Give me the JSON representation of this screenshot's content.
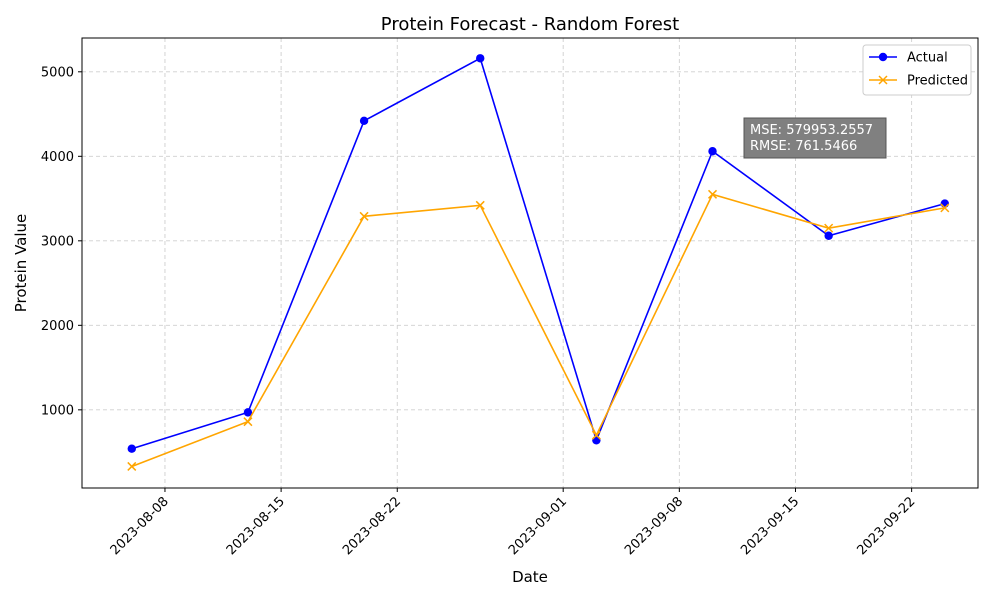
{
  "chart_data": {
    "type": "line",
    "title": "Protein Forecast - Random Forest",
    "xlabel": "Date",
    "ylabel": "Protein Value",
    "x": [
      "2023-08-06",
      "2023-08-13",
      "2023-08-20",
      "2023-08-27",
      "2023-09-03",
      "2023-09-10",
      "2023-09-17",
      "2023-09-24"
    ],
    "xlim": [
      "2023-08-03",
      "2023-09-26"
    ],
    "xticks": [
      "2023-08-08",
      "2023-08-15",
      "2023-08-22",
      "2023-09-01",
      "2023-09-08",
      "2023-09-15",
      "2023-09-22"
    ],
    "ylim": [
      75,
      5400
    ],
    "yticks": [
      1000,
      2000,
      3000,
      4000,
      5000
    ],
    "grid": true,
    "legend_position": "top-right",
    "series": [
      {
        "name": "Actual",
        "color": "#0000ff",
        "marker": "circle",
        "values": [
          540,
          970,
          4420,
          5160,
          640,
          4060,
          3060,
          3440
        ]
      },
      {
        "name": "Predicted",
        "color": "#ffa500",
        "marker": "x",
        "values": [
          330,
          860,
          3290,
          3420,
          700,
          3550,
          3150,
          3390
        ]
      }
    ],
    "annotation": {
      "line1": "MSE: 579953.2557",
      "line2": "RMSE: 761.5466"
    }
  }
}
